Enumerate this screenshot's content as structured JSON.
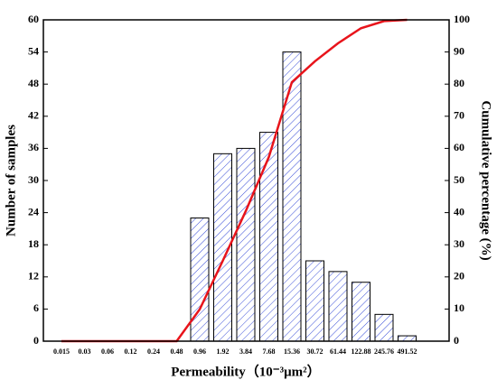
{
  "chart_data": {
    "type": "bar",
    "categories": [
      "0.015",
      "0.03",
      "0.06",
      "0.12",
      "0.24",
      "0.48",
      "0.96",
      "1.92",
      "3.84",
      "7.68",
      "15.36",
      "30.72",
      "61.44",
      "122.88",
      "245.76",
      "491.52"
    ],
    "series": [
      {
        "color": "#3a4fd8",
        "values": [
          0,
          0,
          0,
          0,
          0,
          0,
          23,
          35,
          36,
          39,
          54,
          15,
          13,
          11,
          5,
          1
        ]
      },
      {
        "type": "line",
        "axis": "y2",
        "color": "#e8141b",
        "values": [
          0,
          0,
          0,
          0,
          0,
          0,
          9.9,
          25,
          40.5,
          57.3,
          80.6,
          87.1,
          92.7,
          97.4,
          99.6,
          100
        ]
      }
    ],
    "xlabel": "Permeability（10⁻³μm²）",
    "ylabel": "Number of samples",
    "y2label": "Cumulative percentage (%)",
    "ylim": [
      0,
      60
    ],
    "yticks": [
      0,
      6,
      12,
      18,
      24,
      30,
      36,
      42,
      48,
      54,
      60
    ],
    "y2lim": [
      0,
      100
    ],
    "y2ticks": [
      0,
      10,
      20,
      30,
      40,
      50,
      60,
      70,
      80,
      90,
      100
    ]
  }
}
